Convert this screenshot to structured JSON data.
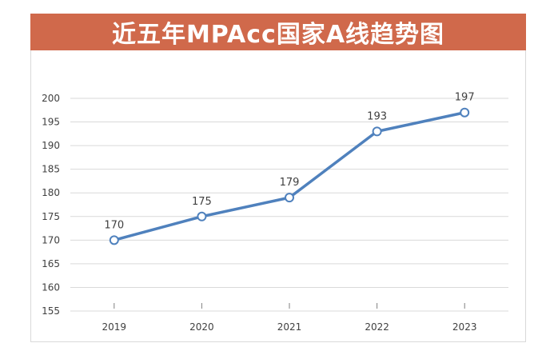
{
  "chart_data": {
    "type": "line",
    "title": "近五年MPAcc国家A线趋势图",
    "xlabel": "",
    "ylabel": "",
    "categories": [
      "2019",
      "2020",
      "2021",
      "2022",
      "2023"
    ],
    "series": [
      {
        "name": "MPAcc国家A线",
        "values": [
          170,
          175,
          179,
          193,
          197
        ]
      }
    ],
    "ylim": [
      155,
      200
    ],
    "yticks": [
      155,
      160,
      165,
      170,
      175,
      180,
      185,
      190,
      195,
      200
    ],
    "ytick_labels": [
      "155",
      "160",
      "165",
      "170",
      "175",
      "180",
      "185",
      "190",
      "195",
      "200"
    ],
    "data_labels": [
      "170",
      "175",
      "179",
      "193",
      "197"
    ],
    "grid": true,
    "legend": "none",
    "colors": {
      "title_background": "#d0694b",
      "title_text": "#ffffff",
      "line": "#4f81bd",
      "marker_fill": "#ffffff",
      "gridline": "#d9d9d9",
      "text": "#404040"
    }
  }
}
